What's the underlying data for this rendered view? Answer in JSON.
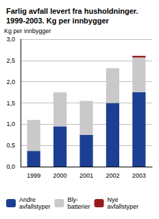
{
  "chart_data": {
    "type": "bar",
    "title": "Farlig avfall levert fra husholdninger.\n1999-2003. Kg per innbygger",
    "ylabel": "Kg per innbygger",
    "categories": [
      "1999",
      "2000",
      "2001",
      "2002",
      "2003"
    ],
    "series": [
      {
        "name": "Andre\navfallstyper",
        "color": "#1c3f94",
        "values": [
          0.37,
          0.95,
          0.75,
          1.5,
          1.75
        ]
      },
      {
        "name": "Bly-\nbatterier",
        "color": "#c9c9c9",
        "values": [
          0.73,
          0.8,
          0.8,
          0.82,
          0.82
        ]
      },
      {
        "name": "Nye\navfallstyper",
        "color": "#9b1b1b",
        "values": [
          0,
          0,
          0,
          0,
          0.04
        ]
      }
    ],
    "stacked": true,
    "ylim": [
      0,
      3
    ],
    "yticks": [
      {
        "value": 0,
        "label": "0,0"
      },
      {
        "value": 0.5,
        "label": "0,5"
      },
      {
        "value": 1,
        "label": "1,0"
      },
      {
        "value": 1.5,
        "label": "1,5"
      },
      {
        "value": 2,
        "label": "2,0"
      },
      {
        "value": 2.5,
        "label": "2,5"
      },
      {
        "value": 3,
        "label": "3,0"
      }
    ],
    "grid": true,
    "legend": "bottom"
  }
}
